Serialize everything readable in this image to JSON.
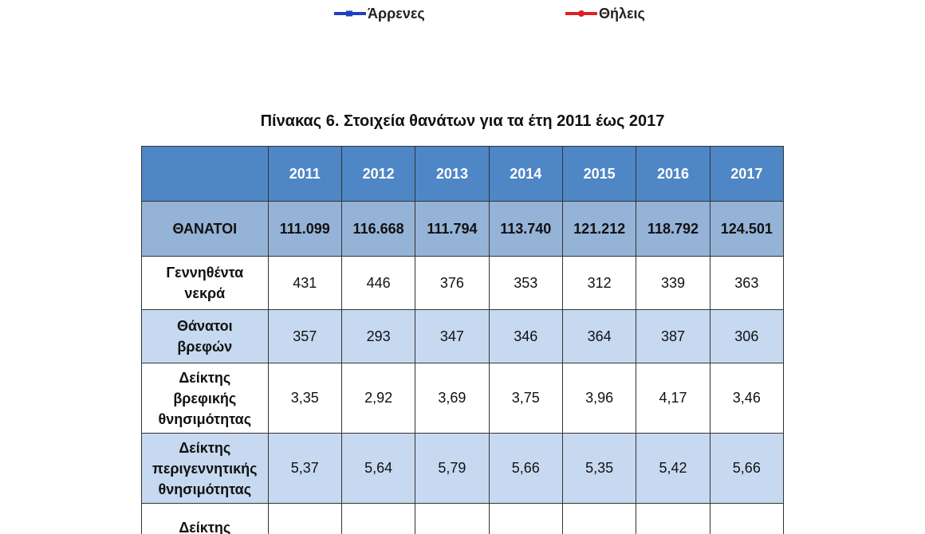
{
  "legend": {
    "male": {
      "label": "Άρρενες",
      "color": "#1f3fbf"
    },
    "female": {
      "label": "Θήλεις",
      "color": "#e02020"
    }
  },
  "title": "Πίνακας 6. Στοιχεία θανάτων για τα έτη 2011 έως 2017",
  "table": {
    "header_corner": "",
    "years": [
      "2011",
      "2012",
      "2013",
      "2014",
      "2015",
      "2016",
      "2017"
    ],
    "rows": [
      {
        "label": "ΘΑΝΑΤΟΙ",
        "values": [
          "111.099",
          "116.668",
          "111.794",
          "113.740",
          "121.212",
          "118.792",
          "124.501"
        ]
      },
      {
        "label_lines": [
          "Γεννηθέντα",
          "νεκρά"
        ],
        "values": [
          "431",
          "446",
          "376",
          "353",
          "312",
          "339",
          "363"
        ]
      },
      {
        "label_lines": [
          "Θάνατοι",
          "βρεφών"
        ],
        "values": [
          "357",
          "293",
          "347",
          "346",
          "364",
          "387",
          "306"
        ]
      },
      {
        "label_lines": [
          "Δείκτης",
          "βρεφικής",
          "θνησιμότητας"
        ],
        "values": [
          "3,35",
          "2,92",
          "3,69",
          "3,75",
          "3,96",
          "4,17",
          "3,46"
        ]
      },
      {
        "label_lines": [
          "Δείκτης",
          "περιγεννητικής",
          "θνησιμότητας"
        ],
        "values": [
          "5,37",
          "5,64",
          "5,79",
          "5,66",
          "5,35",
          "5,42",
          "5,66"
        ]
      },
      {
        "label_lines": [
          "Δείκτης"
        ],
        "values": [
          "",
          "",
          "",
          "",
          "",
          "",
          ""
        ]
      }
    ]
  },
  "colors": {
    "header_bg": "#4f86c6",
    "deaths_row_bg": "#95b3d7",
    "alt_row_bg": "#c6d9f0"
  }
}
